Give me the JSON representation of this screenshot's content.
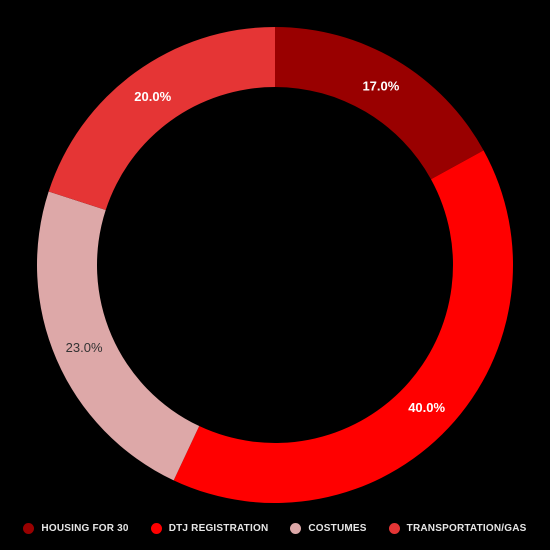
{
  "chart_data": {
    "type": "pie",
    "donut": true,
    "title": "",
    "categories": [
      "HOUSING FOR 30",
      "DTJ REGISTRATION",
      "COSTUMES",
      "TRANSPORTATION/GAS"
    ],
    "values": [
      17.0,
      40.0,
      23.0,
      20.0
    ],
    "labels": [
      "17.0%",
      "40.0%",
      "23.0%",
      "20.0%"
    ],
    "colors": [
      "#990000",
      "#ff0000",
      "#dda8a8",
      "#e53535"
    ],
    "label_colors": [
      "#ffffff",
      "#ffffff",
      "#333333",
      "#ffffff"
    ],
    "legend_position": "bottom",
    "background": "#000000"
  },
  "legend": {
    "items": [
      {
        "label": "HOUSING FOR 30",
        "color": "#990000"
      },
      {
        "label": "DTJ REGISTRATION",
        "color": "#ff0000"
      },
      {
        "label": "COSTUMES",
        "color": "#dda8a8"
      },
      {
        "label": "TRANSPORTATION/GAS",
        "color": "#e53535"
      }
    ]
  }
}
